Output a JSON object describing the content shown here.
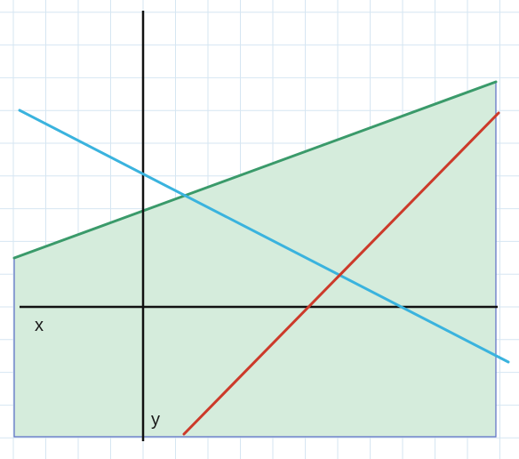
{
  "axis_labels": {
    "x": "x",
    "y": "y"
  },
  "colors": {
    "grid": "#d6e6f2",
    "region_fill": "#d5ecdc",
    "region_border": "#5b6fc4",
    "boundary_line": "#3a9a6a",
    "descending_line": "#3ab3de",
    "ascending_line": "#cc3a2a",
    "axes": "#111111"
  }
}
